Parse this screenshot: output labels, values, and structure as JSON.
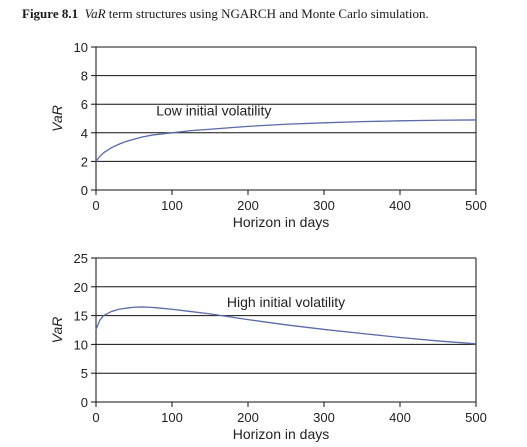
{
  "figure": {
    "label": "Figure 8.1",
    "title_italic": "VaR",
    "title_rest": " term structures using NGARCH and Monte Carlo simulation."
  },
  "chart_data": [
    {
      "type": "line",
      "xlabel": "Horizon in days",
      "ylabel": "VaR",
      "xlim": [
        0,
        500
      ],
      "ylim": [
        0,
        10
      ],
      "xticks": [
        0,
        100,
        200,
        300,
        400,
        500
      ],
      "yticks": [
        0,
        2,
        4,
        6,
        8,
        10
      ],
      "grid": "horizontal",
      "annotation": {
        "text": "Low initial volatility",
        "x": 155,
        "y": 5.2
      },
      "series": [
        {
          "color": "#5b6aa8",
          "x": [
            0,
            5,
            10,
            20,
            30,
            40,
            50,
            60,
            75,
            100,
            125,
            150,
            200,
            250,
            300,
            350,
            400,
            450,
            500
          ],
          "y": [
            2.0,
            2.35,
            2.6,
            2.95,
            3.2,
            3.4,
            3.55,
            3.7,
            3.85,
            4.0,
            4.15,
            4.25,
            4.45,
            4.6,
            4.7,
            4.78,
            4.84,
            4.88,
            4.9
          ]
        }
      ]
    },
    {
      "type": "line",
      "xlabel": "Horizon in days",
      "ylabel": "VaR",
      "xlim": [
        0,
        500
      ],
      "ylim": [
        0,
        25
      ],
      "xticks": [
        0,
        100,
        200,
        300,
        400,
        500
      ],
      "yticks": [
        0,
        5,
        10,
        15,
        20,
        25
      ],
      "grid": "horizontal",
      "annotation": {
        "text": "High initial volatility",
        "x": 250,
        "y": 16.5
      },
      "series": [
        {
          "color": "#5b6aa8",
          "x": [
            0,
            5,
            10,
            20,
            30,
            40,
            50,
            60,
            70,
            80,
            100,
            125,
            150,
            175,
            200,
            250,
            300,
            350,
            400,
            450,
            500
          ],
          "y": [
            12.6,
            14.2,
            15.0,
            15.7,
            16.1,
            16.3,
            16.45,
            16.5,
            16.45,
            16.35,
            16.1,
            15.7,
            15.3,
            14.8,
            14.3,
            13.4,
            12.6,
            11.9,
            11.2,
            10.6,
            10.1
          ]
        }
      ]
    }
  ]
}
